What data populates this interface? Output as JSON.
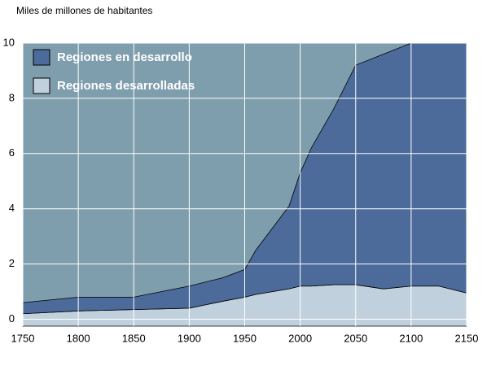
{
  "chart_data": {
    "type": "stacked_area",
    "title": "Miles de millones de habitantes",
    "x": [
      1750,
      1800,
      1850,
      1900,
      1930,
      1950,
      1960,
      1990,
      2000,
      2010,
      2030,
      2050,
      2075,
      2100,
      2125,
      2150
    ],
    "series": [
      {
        "name": "Regiones en desarrollo",
        "color": "#4c6b9a",
        "values": [
          0.4,
          0.5,
          0.45,
          0.8,
          0.85,
          1.0,
          1.6,
          3.0,
          4.1,
          5.0,
          6.35,
          7.95,
          8.5,
          8.8,
          8.8,
          9.05
        ]
      },
      {
        "name": "Regiones desarrolladas",
        "color": "#c0d1dd",
        "values": [
          0.2,
          0.3,
          0.35,
          0.4,
          0.65,
          0.8,
          0.9,
          1.1,
          1.2,
          1.2,
          1.25,
          1.25,
          1.1,
          1.2,
          1.2,
          0.95
        ]
      }
    ],
    "xlim": [
      1750,
      2150
    ],
    "xticks": [
      1750,
      1800,
      1850,
      1900,
      1950,
      2000,
      2050,
      2100,
      2150
    ],
    "ylim": [
      -0.25,
      10
    ],
    "yticks": [
      0,
      2,
      4,
      6,
      8,
      10
    ],
    "grid": true,
    "background": "#7f9ead",
    "legend": "top-left"
  }
}
